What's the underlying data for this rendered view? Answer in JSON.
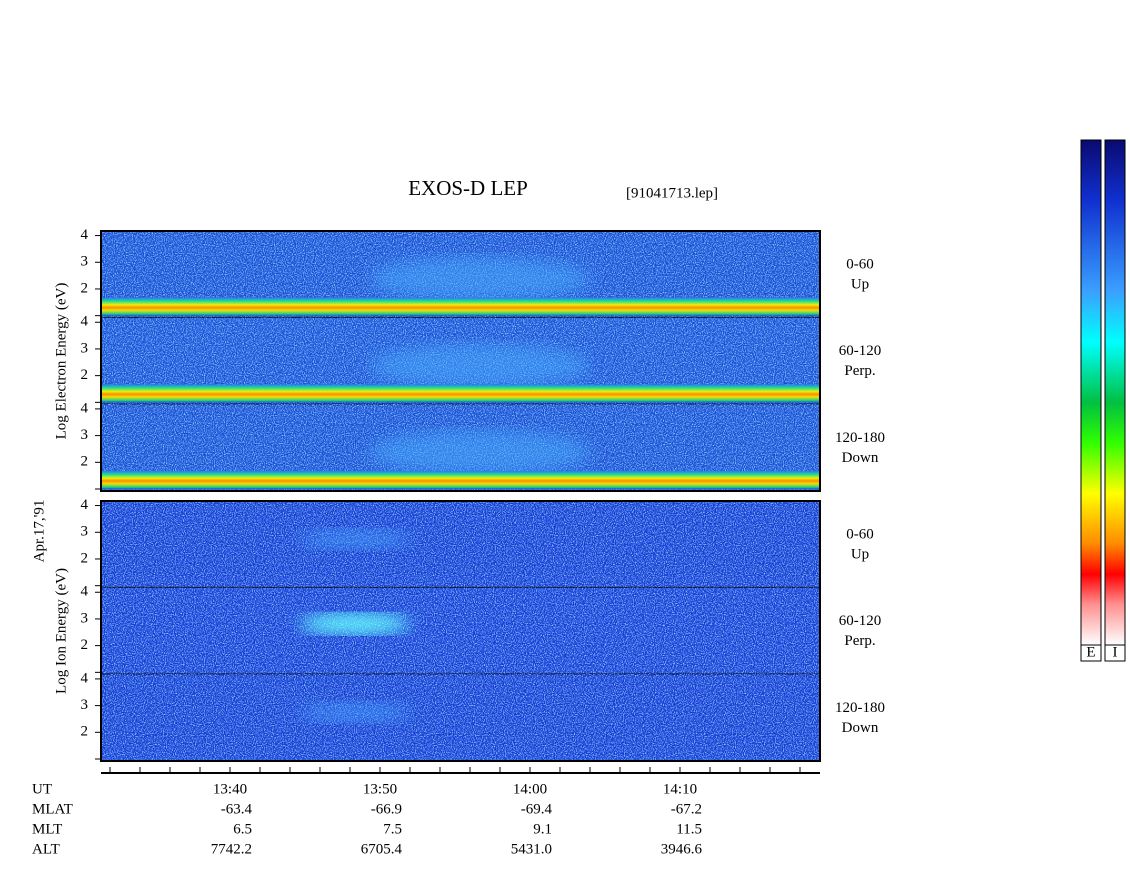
{
  "header": {
    "title": "EXOS-D LEP",
    "file": "[91041713.lep]"
  },
  "date": "Apr.17,'91",
  "panels": [
    {
      "label": "Log Electron Energy (eV)",
      "channels": [
        {
          "angle": "0-60",
          "direction": "Up"
        },
        {
          "angle": "60-120",
          "direction": "Perp."
        },
        {
          "angle": "120-180",
          "direction": "Down"
        }
      ]
    },
    {
      "label": "Log Ion Energy (eV)",
      "channels": [
        {
          "angle": "0-60",
          "direction": "Up"
        },
        {
          "angle": "60-120",
          "direction": "Perp."
        },
        {
          "angle": "120-180",
          "direction": "Down"
        }
      ]
    }
  ],
  "y_tick_labels": [
    2,
    3,
    4
  ],
  "time_axis": {
    "rows": [
      {
        "name": "UT",
        "values": [
          "13:40",
          "13:50",
          "14:00",
          "14:10"
        ]
      },
      {
        "name": "MLAT",
        "values": [
          "-63.4",
          "-66.9",
          "-69.4",
          "-67.2"
        ]
      },
      {
        "name": "MLT",
        "values": [
          "6.5",
          "7.5",
          "9.1",
          "11.5"
        ]
      },
      {
        "name": "ALT",
        "values": [
          "7742.2",
          "6705.4",
          "5431.0",
          "3946.6"
        ]
      }
    ]
  },
  "colorbars": [
    "E",
    "I"
  ]
}
